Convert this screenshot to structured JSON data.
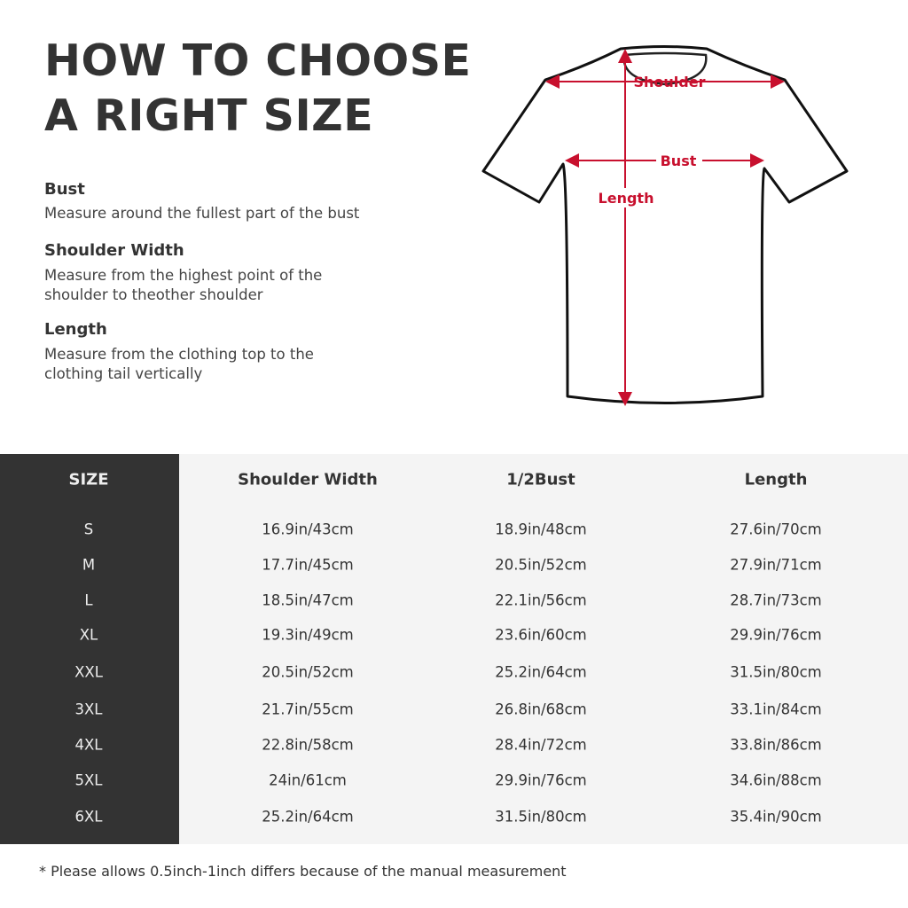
{
  "title_lines": [
    "HOW TO CHOOSE",
    "A RIGHT SIZE"
  ],
  "sections": [
    {
      "heading": "Bust",
      "desc_lines": [
        "Measure around the fullest part of the bust"
      ]
    },
    {
      "heading": "Shoulder Width",
      "desc_lines": [
        "Measure from the highest point of the",
        "shoulder to theother shoulder"
      ]
    },
    {
      "heading": "Length",
      "desc_lines": [
        "Measure from the clothing top to the",
        "clothing tail vertically"
      ]
    }
  ],
  "diagram": {
    "shoulder_label": "Shoulder",
    "bust_label": "Bust",
    "length_label": "Length",
    "arrow_color": "#c8102e"
  },
  "table": {
    "headers": [
      "SIZE",
      "Shoulder Width",
      "1/2Bust",
      "Length"
    ],
    "rows": [
      [
        "S",
        "16.9in/43cm",
        "18.9in/48cm",
        "27.6in/70cm"
      ],
      [
        "M",
        "17.7in/45cm",
        "20.5in/52cm",
        "27.9in/71cm"
      ],
      [
        "L",
        "18.5in/47cm",
        "22.1in/56cm",
        "28.7in/73cm"
      ],
      [
        "XL",
        "19.3in/49cm",
        "23.6in/60cm",
        "29.9in/76cm"
      ],
      [
        "XXL",
        "20.5in/52cm",
        "25.2in/64cm",
        "31.5in/80cm"
      ],
      [
        "3XL",
        "21.7in/55cm",
        "26.8in/68cm",
        "33.1in/84cm"
      ],
      [
        "4XL",
        "22.8in/58cm",
        "28.4in/72cm",
        "33.8in/86cm"
      ],
      [
        "5XL",
        "24in/61cm",
        "29.9in/76cm",
        "34.6in/88cm"
      ],
      [
        "6XL",
        "25.2in/64cm",
        "31.5in/80cm",
        "35.4in/90cm"
      ]
    ]
  },
  "footnote": "* Please allows 0.5inch-1inch differs because of the  manual measurement"
}
